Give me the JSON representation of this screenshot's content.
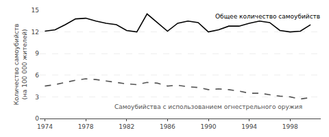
{
  "chart_data": {
    "type": "line",
    "ylabel": "Количество самоубийств\n(на 100 000 жителей)",
    "x": [
      1974,
      1975,
      1976,
      1977,
      1978,
      1979,
      1980,
      1981,
      1982,
      1983,
      1984,
      1985,
      1986,
      1987,
      1988,
      1989,
      1990,
      1991,
      1992,
      1993,
      1994,
      1995,
      1996,
      1997,
      1998,
      1999,
      2000
    ],
    "series": [
      {
        "name": "Общее количество самоубийств",
        "color": "#000000",
        "line_style": "solid",
        "values": [
          12.1,
          12.3,
          13.0,
          13.8,
          13.9,
          13.5,
          13.2,
          13.0,
          12.2,
          12.0,
          14.5,
          13.3,
          12.1,
          13.2,
          13.5,
          13.3,
          12.0,
          12.3,
          12.8,
          12.8,
          13.2,
          13.5,
          13.3,
          12.2,
          12.0,
          12.1,
          13.0
        ]
      },
      {
        "name": "Самоубийства с использованием огнестрельного оружия",
        "color": "#555555",
        "line_style": "dashed",
        "values": [
          4.5,
          4.7,
          5.0,
          5.3,
          5.5,
          5.4,
          5.2,
          5.0,
          4.8,
          4.7,
          5.0,
          4.9,
          4.5,
          4.6,
          4.4,
          4.3,
          4.0,
          4.1,
          4.0,
          3.8,
          3.5,
          3.5,
          3.3,
          3.1,
          3.0,
          2.7,
          2.9
        ]
      }
    ],
    "xlim": [
      1973.5,
      2001
    ],
    "xticks": [
      1974,
      1978,
      1982,
      1986,
      1990,
      1994,
      1998
    ],
    "ylim": [
      0,
      15
    ],
    "yticks": [
      0,
      3,
      6,
      9,
      12,
      15
    ],
    "grid": true
  }
}
